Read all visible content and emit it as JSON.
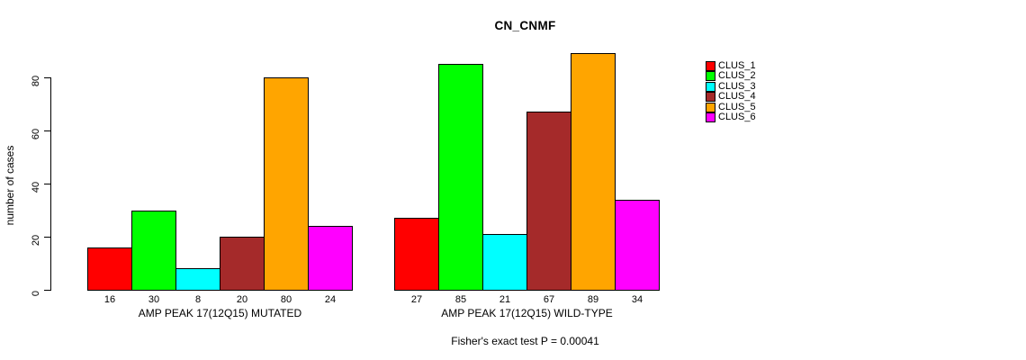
{
  "title": "CN_CNMF",
  "y_axis": {
    "label": "number of cases"
  },
  "footer": "Fisher's exact test P = 0.00041",
  "legend": {
    "items": [
      {
        "label": "CLUS_1",
        "color": "#FF0000"
      },
      {
        "label": "CLUS_2",
        "color": "#00FF00"
      },
      {
        "label": "CLUS_3",
        "color": "#00FFFF"
      },
      {
        "label": "CLUS_4",
        "color": "#A52A2A"
      },
      {
        "label": "CLUS_5",
        "color": "#FFA500"
      },
      {
        "label": "CLUS_6",
        "color": "#FF00FF"
      }
    ]
  },
  "chart_data": {
    "type": "bar",
    "title": "CN_CNMF",
    "xlabel": "",
    "ylabel": "number of cases",
    "ylim": [
      0,
      89
    ],
    "y_ticks": [
      0,
      20,
      40,
      60,
      80
    ],
    "grid": false,
    "legend_position": "right-outside",
    "bar_value_labels_shown": true,
    "categories": [
      "AMP PEAK 17(12Q15) MUTATED",
      "AMP PEAK 17(12Q15) WILD-TYPE"
    ],
    "series": [
      {
        "name": "CLUS_1",
        "color": "#FF0000",
        "values": [
          16,
          27
        ]
      },
      {
        "name": "CLUS_2",
        "color": "#00FF00",
        "values": [
          30,
          85
        ]
      },
      {
        "name": "CLUS_3",
        "color": "#00FFFF",
        "values": [
          8,
          21
        ]
      },
      {
        "name": "CLUS_4",
        "color": "#A52A2A",
        "values": [
          20,
          67
        ]
      },
      {
        "name": "CLUS_5",
        "color": "#FFA500",
        "values": [
          80,
          89
        ]
      },
      {
        "name": "CLUS_6",
        "color": "#FF00FF",
        "values": [
          24,
          34
        ]
      }
    ],
    "annotation": "Fisher's exact test P = 0.00041"
  }
}
